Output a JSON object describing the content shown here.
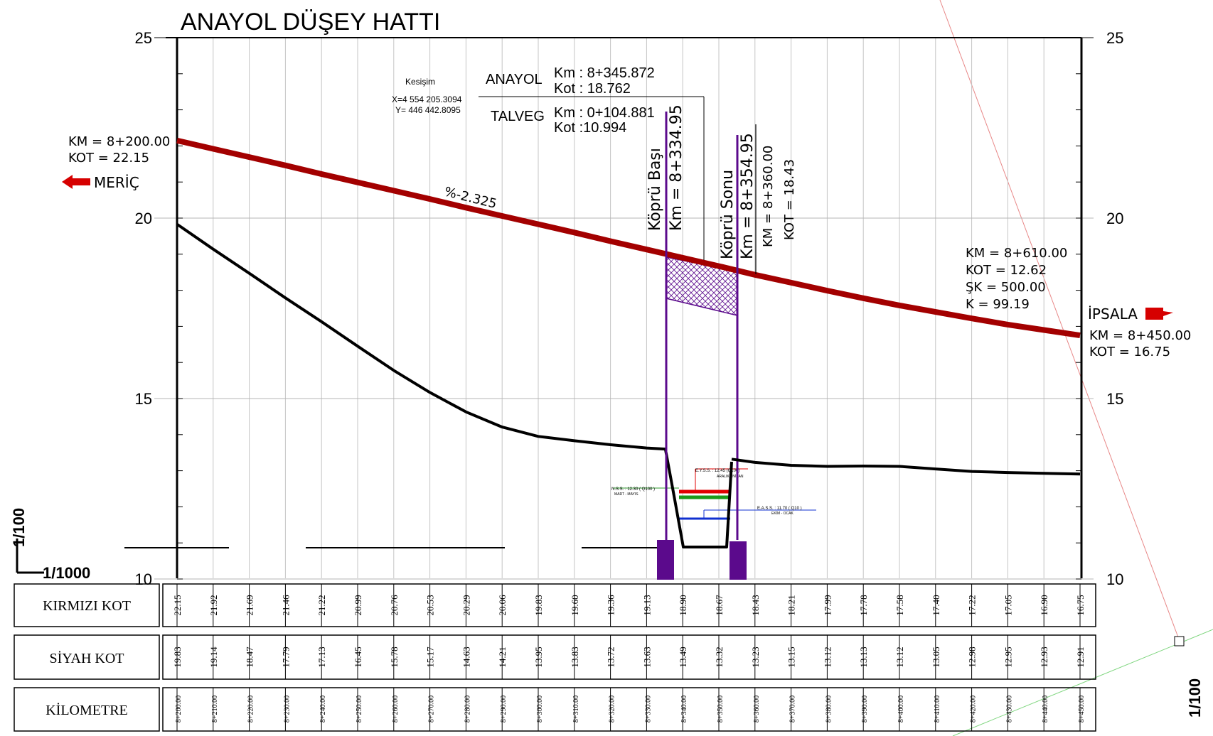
{
  "title": "ANAYOL DÜŞEY HATTI",
  "elevation_ticks": [
    "25",
    "20",
    "15",
    "10"
  ],
  "scale": {
    "vertical": "1/100",
    "horizontal": "1/1000"
  },
  "intersection": {
    "label": "Kesişim",
    "x": "X=4 554 205.3094",
    "y": "Y=  446 442.8095",
    "anayol": {
      "name": "ANAYOL",
      "km": "Km : 8+345.872",
      "kot": "Kot : 18.762"
    },
    "talveg": {
      "name": "TALVEG",
      "km": "Km : 0+104.881",
      "kot": "Kot :10.994"
    }
  },
  "start_point": {
    "km": "KM = 8+200.00",
    "kot": "KOT = 22.15",
    "direction": "MERİÇ"
  },
  "end_point": {
    "km": "KM = 8+450.00",
    "kot": "KOT = 16.75",
    "direction": "İPSALA"
  },
  "grade_label": "%-2.325",
  "vertical_curve": {
    "km": "KM = 8+610.00",
    "kot": "KOT = 12.62",
    "sk": "ŞK = 500.00",
    "k": "K = 99.19"
  },
  "bridge": {
    "start_label": "Köprü Başı",
    "start_km": "Km = 8+334.95",
    "end_label": "Köprü Sonu",
    "end_km": "Km = 8+354.95",
    "section_km": "KM = 8+360.00",
    "section_kot": "KOT = 18.43"
  },
  "water_levels": {
    "high": "E.Y.S.S. : 12.45 (Q100)",
    "high_sub": "ARALIK - NİSAN",
    "design": "N.S.S. : 12.30 ( Q100 )",
    "design_sub": "MART - MAYIS",
    "low": "E.A.S.S. : 11.70 ( Q10 )",
    "low_sub": "EKİM - OCAK"
  },
  "table": {
    "row_labels": [
      "KIRMIZI KOT",
      "SİYAH KOT",
      "KİLOMETRE"
    ],
    "kirmizi": [
      "22.15",
      "21.92",
      "21.69",
      "21.46",
      "21.22",
      "20.99",
      "20.76",
      "20.53",
      "20.29",
      "20.06",
      "19.83",
      "19.60",
      "19.36",
      "19.13",
      "18.90",
      "18.67",
      "18.43",
      "18.21",
      "17.99",
      "17.78",
      "17.58",
      "17.40",
      "17.22",
      "17.05",
      "16.90",
      "16.75"
    ],
    "siyah": [
      "19.83",
      "19.14",
      "18.47",
      "17.79",
      "17.13",
      "16.45",
      "15.78",
      "15.17",
      "14.63",
      "14.21",
      "13.95",
      "13.83",
      "13.72",
      "13.63",
      "13.49",
      "13.32",
      "13.23",
      "13.15",
      "13.12",
      "13.13",
      "13.12",
      "13.05",
      "12.98",
      "12.95",
      "12.93",
      "12.91"
    ],
    "km": [
      "8+200.00",
      "8+210.00",
      "8+220.00",
      "8+230.00",
      "8+240.00",
      "8+250.00",
      "8+260.00",
      "8+270.00",
      "8+280.00",
      "8+290.00",
      "8+300.00",
      "8+310.00",
      "8+320.00",
      "8+330.00",
      "8+340.00",
      "8+350.00",
      "8+360.00",
      "8+370.00",
      "8+380.00",
      "8+390.00",
      "8+400.00",
      "8+410.00",
      "8+420.00",
      "8+430.00",
      "8+440.00",
      "8+450.00"
    ]
  },
  "colors": {
    "red_line": "#a30000",
    "black_line": "#000000",
    "bridge": "#5b0a8c",
    "arrow": "#d60000",
    "grid": "#b5b5b5"
  }
}
